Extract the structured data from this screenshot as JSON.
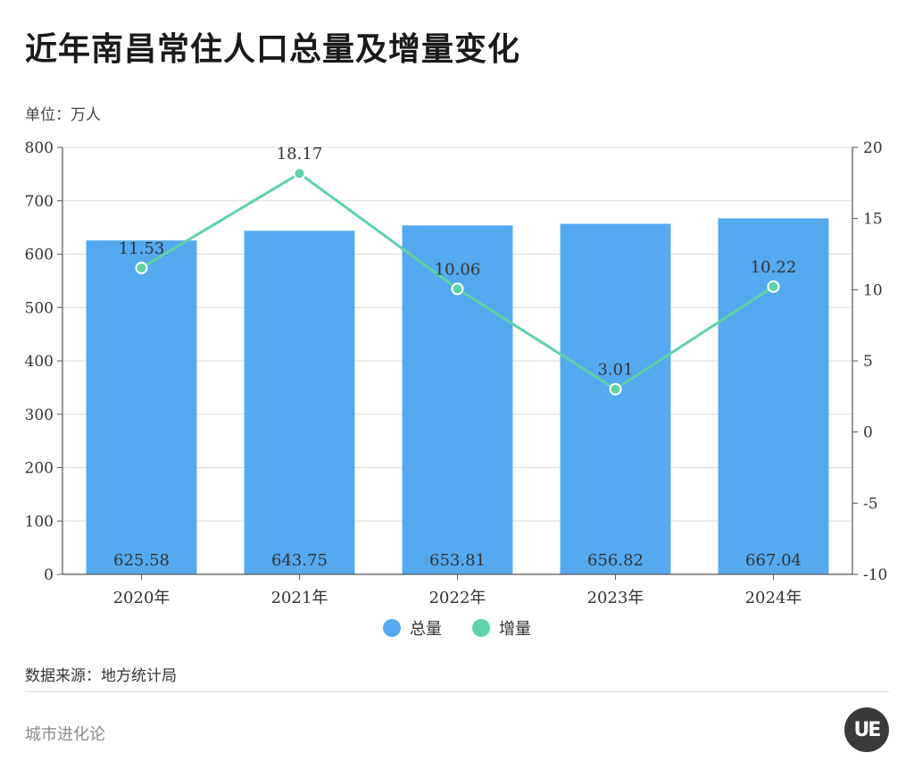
{
  "header": {
    "title": "近年南昌常住人口总量及增量变化",
    "unit": "单位：万人"
  },
  "footer": {
    "source": "数据来源：地方统计局",
    "brand": "城市进化论",
    "badge_text": "UE"
  },
  "colors": {
    "bar": "#55A9EF",
    "line": "#5ED3A6",
    "grid": "#dddddd",
    "axis": "#555555"
  },
  "chart_data": {
    "type": "bar",
    "categories": [
      "2020年",
      "2021年",
      "2022年",
      "2023年",
      "2024年"
    ],
    "series": [
      {
        "name": "总量",
        "type": "bar",
        "axis": "left",
        "values": [
          625.58,
          643.75,
          653.81,
          656.82,
          667.04
        ]
      },
      {
        "name": "增量",
        "type": "line",
        "axis": "right",
        "values": [
          11.53,
          18.17,
          10.06,
          3.01,
          10.22
        ]
      }
    ],
    "ylim_left": [
      0,
      800
    ],
    "yticks_left": [
      0,
      100,
      200,
      300,
      400,
      500,
      600,
      700,
      800
    ],
    "ylim_right": [
      -10,
      20
    ],
    "yticks_right": [
      -10,
      -5,
      0,
      5,
      10,
      15,
      20
    ],
    "grid": true,
    "legend": "bottom-center"
  }
}
